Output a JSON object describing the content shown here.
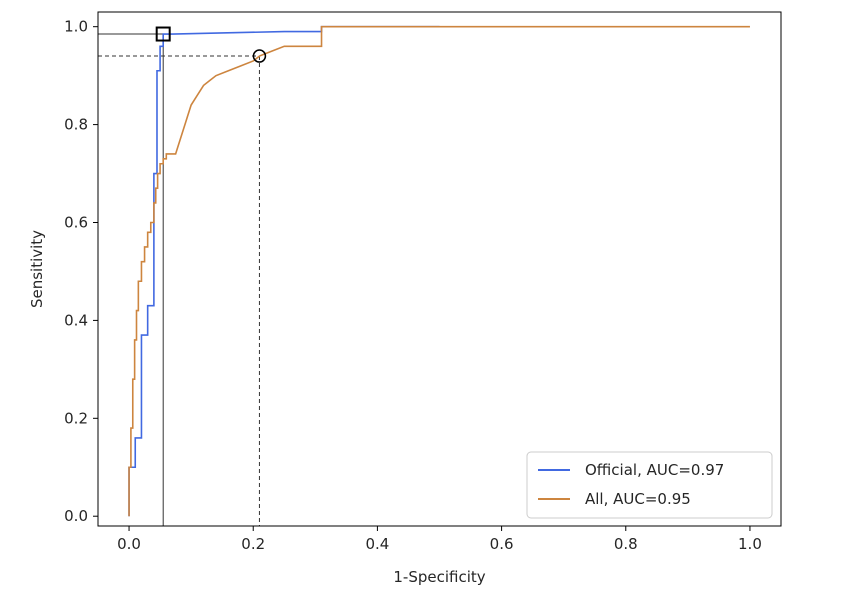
{
  "chart_data": {
    "type": "line",
    "title": "",
    "xlabel": "1-Specificity",
    "ylabel": "Sensitivity",
    "xlim": [
      -0.05,
      1.05
    ],
    "ylim": [
      -0.02,
      1.03
    ],
    "xticks": [
      "0.0",
      "0.2",
      "0.4",
      "0.6",
      "0.8",
      "1.0"
    ],
    "yticks": [
      "0.0",
      "0.2",
      "0.4",
      "0.6",
      "0.8",
      "1.0"
    ],
    "grid": false,
    "legend_position": "lower-right",
    "series": [
      {
        "name": "Official, AUC=0.97",
        "color": "#4169e1",
        "step": true,
        "points": [
          [
            0.0,
            0.0
          ],
          [
            0.0,
            0.1
          ],
          [
            0.01,
            0.1
          ],
          [
            0.01,
            0.16
          ],
          [
            0.02,
            0.16
          ],
          [
            0.02,
            0.37
          ],
          [
            0.03,
            0.37
          ],
          [
            0.03,
            0.43
          ],
          [
            0.04,
            0.43
          ],
          [
            0.04,
            0.7
          ],
          [
            0.045,
            0.7
          ],
          [
            0.045,
            0.91
          ],
          [
            0.05,
            0.91
          ],
          [
            0.05,
            0.96
          ],
          [
            0.055,
            0.96
          ],
          [
            0.055,
            0.985
          ],
          [
            0.07,
            0.985
          ],
          [
            0.25,
            0.99
          ],
          [
            0.31,
            0.99
          ],
          [
            0.31,
            1.0
          ],
          [
            0.5,
            1.0
          ]
        ]
      },
      {
        "name": "All, AUC=0.95",
        "color": "#cd853f",
        "step": true,
        "points": [
          [
            0.0,
            0.0
          ],
          [
            0.0,
            0.1
          ],
          [
            0.003,
            0.1
          ],
          [
            0.003,
            0.18
          ],
          [
            0.006,
            0.18
          ],
          [
            0.006,
            0.28
          ],
          [
            0.009,
            0.28
          ],
          [
            0.009,
            0.36
          ],
          [
            0.012,
            0.36
          ],
          [
            0.012,
            0.42
          ],
          [
            0.015,
            0.42
          ],
          [
            0.015,
            0.48
          ],
          [
            0.02,
            0.48
          ],
          [
            0.02,
            0.52
          ],
          [
            0.025,
            0.52
          ],
          [
            0.025,
            0.55
          ],
          [
            0.03,
            0.55
          ],
          [
            0.03,
            0.58
          ],
          [
            0.035,
            0.58
          ],
          [
            0.035,
            0.6
          ],
          [
            0.04,
            0.6
          ],
          [
            0.04,
            0.64
          ],
          [
            0.043,
            0.64
          ],
          [
            0.043,
            0.67
          ],
          [
            0.046,
            0.67
          ],
          [
            0.046,
            0.7
          ],
          [
            0.05,
            0.7
          ],
          [
            0.05,
            0.72
          ],
          [
            0.055,
            0.72
          ],
          [
            0.055,
            0.73
          ],
          [
            0.06,
            0.73
          ],
          [
            0.06,
            0.74
          ],
          [
            0.075,
            0.74
          ],
          [
            0.08,
            0.76
          ],
          [
            0.085,
            0.78
          ],
          [
            0.09,
            0.8
          ],
          [
            0.095,
            0.82
          ],
          [
            0.1,
            0.84
          ],
          [
            0.11,
            0.86
          ],
          [
            0.12,
            0.88
          ],
          [
            0.13,
            0.89
          ],
          [
            0.14,
            0.9
          ],
          [
            0.16,
            0.91
          ],
          [
            0.18,
            0.92
          ],
          [
            0.2,
            0.93
          ],
          [
            0.21,
            0.94
          ],
          [
            0.23,
            0.95
          ],
          [
            0.25,
            0.96
          ],
          [
            0.3,
            0.96
          ],
          [
            0.31,
            0.96
          ],
          [
            0.31,
            1.0
          ],
          [
            1.0,
            1.0
          ]
        ]
      }
    ],
    "markers": [
      {
        "shape": "square",
        "x": 0.055,
        "y": 0.985,
        "guide_style": "solid"
      },
      {
        "shape": "circle",
        "x": 0.21,
        "y": 0.94,
        "guide_style": "dashed"
      }
    ]
  }
}
